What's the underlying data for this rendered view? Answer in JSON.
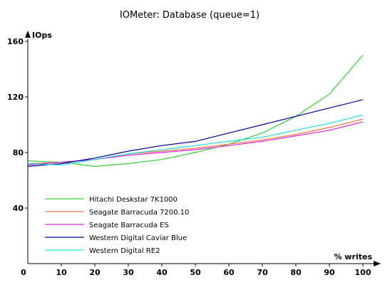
{
  "chart_data": {
    "type": "line",
    "title": "IOMeter: Database (queue=1)",
    "xlabel": "% writes",
    "ylabel": "IOps",
    "x": [
      0,
      10,
      20,
      30,
      40,
      50,
      60,
      70,
      80,
      90,
      100
    ],
    "x_ticks": [
      0,
      10,
      20,
      30,
      40,
      50,
      60,
      70,
      80,
      90,
      100
    ],
    "y_ticks": [
      40,
      80,
      120,
      160
    ],
    "xlim": [
      0,
      100
    ],
    "ylim": [
      0,
      160
    ],
    "grid": false,
    "legend_position": "bottom-left",
    "series": [
      {
        "name": "Hitachi Deskstar 7K1000",
        "color": "#33cc33",
        "values": [
          74,
          73,
          70,
          72,
          75,
          80,
          86,
          94,
          106,
          122,
          150
        ]
      },
      {
        "name": "Seagate Barracuda 7200.10",
        "color": "#e87a3c",
        "values": [
          72,
          73,
          75,
          79,
          81,
          83,
          86,
          89,
          93,
          98,
          104
        ]
      },
      {
        "name": "Seagate Barracuda ES",
        "color": "#dd22dd",
        "values": [
          71,
          73,
          75,
          78,
          80,
          82,
          85,
          88,
          92,
          96,
          102
        ]
      },
      {
        "name": "Western Digital Caviar Blue",
        "color": "#000099",
        "values": [
          70,
          72,
          76,
          81,
          85,
          88,
          94,
          100,
          106,
          112,
          118
        ]
      },
      {
        "name": "Western Digital RE2",
        "color": "#22dddd",
        "values": [
          72,
          71,
          75,
          79,
          82,
          85,
          88,
          91,
          96,
          101,
          107
        ]
      }
    ]
  }
}
